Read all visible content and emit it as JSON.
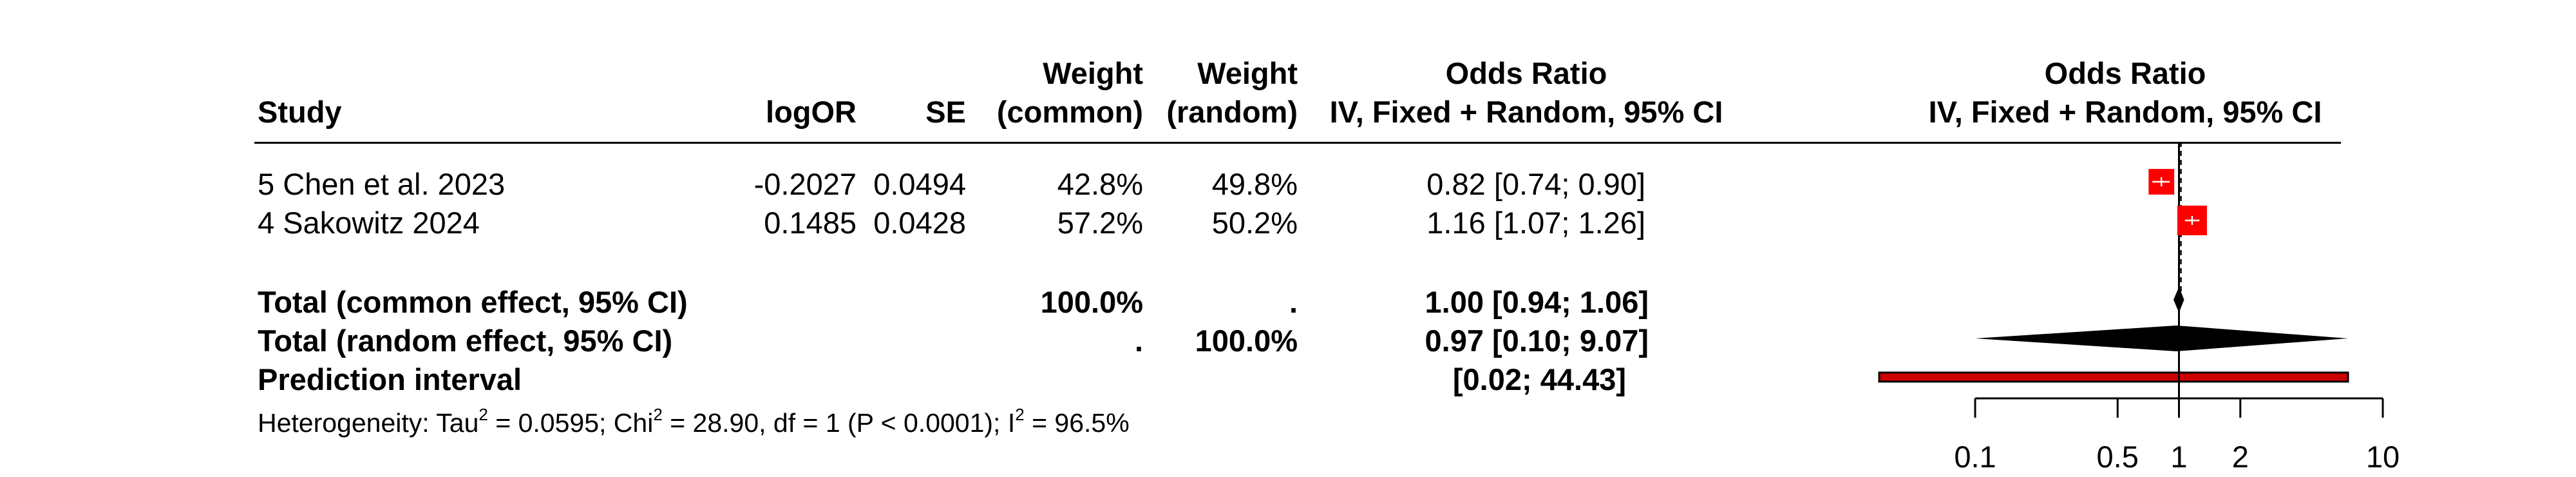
{
  "headers": {
    "study": "Study",
    "logor": "logOR",
    "se": "SE",
    "weight_common_line1": "Weight",
    "weight_common_line2": "(common)",
    "weight_random_line1": "Weight",
    "weight_random_line2": "(random)",
    "or_line1": "Odds Ratio",
    "or_line2": "IV, Fixed + Random, 95% CI",
    "plot_line1": "Odds Ratio",
    "plot_line2": "IV, Fixed + Random, 95% CI"
  },
  "studies": [
    {
      "study": "5 Chen et al. 2023",
      "logor": "-0.2027",
      "se": "0.0494",
      "w_common": "42.8%",
      "w_random": "49.8%",
      "ci": "0.82 [0.74;  0.90]"
    },
    {
      "study": "4 Sakowitz 2024",
      "logor": "0.1485",
      "se": "0.0428",
      "w_common": "57.2%",
      "w_random": "50.2%",
      "ci": "1.16 [1.07;  1.26]"
    }
  ],
  "totals": {
    "common": {
      "label": "Total (common effect, 95% CI)",
      "w_common": "100.0%",
      "w_random": ".",
      "ci": "1.00 [0.94;  1.06]"
    },
    "random": {
      "label": "Total (random effect, 95% CI)",
      "w_common": ".",
      "w_random": "100.0%",
      "ci": "0.97 [0.10;  9.07]"
    },
    "prediction": {
      "label": "Prediction interval",
      "ci": "[0.02; 44.43]"
    }
  },
  "heterogeneity": {
    "prefix": "Heterogeneity: Tau",
    "tau_exp": "2",
    "tau_val": " = 0.0595; Chi",
    "chi_exp": "2",
    "chi_val": " = 28.90, df = 1 (P < 0.0001); I",
    "i_exp": "2",
    "i_val": " = 96.5%"
  },
  "colors": {
    "square": "#ff0000",
    "prediction": "#cc0000",
    "diamond": "#000000"
  },
  "chart_data": {
    "type": "forest",
    "scale": "log",
    "xlim": [
      0.1,
      10
    ],
    "ticks": [
      0.1,
      0.5,
      1,
      2,
      10
    ],
    "tick_labels": [
      "0.1",
      "0.5",
      "1",
      "2",
      "10"
    ],
    "reference_line": 1,
    "common_line": 1.0,
    "studies": [
      {
        "name": "5 Chen et al. 2023",
        "or": 0.82,
        "lower": 0.74,
        "upper": 0.9,
        "weight": 42.8
      },
      {
        "name": "4 Sakowitz 2024",
        "or": 1.16,
        "lower": 1.07,
        "upper": 1.26,
        "weight": 57.2
      }
    ],
    "common_effect": {
      "or": 1.0,
      "lower": 0.94,
      "upper": 1.06
    },
    "random_effect": {
      "or": 0.97,
      "lower": 0.1,
      "upper": 9.07
    },
    "prediction_interval": {
      "lower": 0.02,
      "upper": 44.43
    }
  }
}
